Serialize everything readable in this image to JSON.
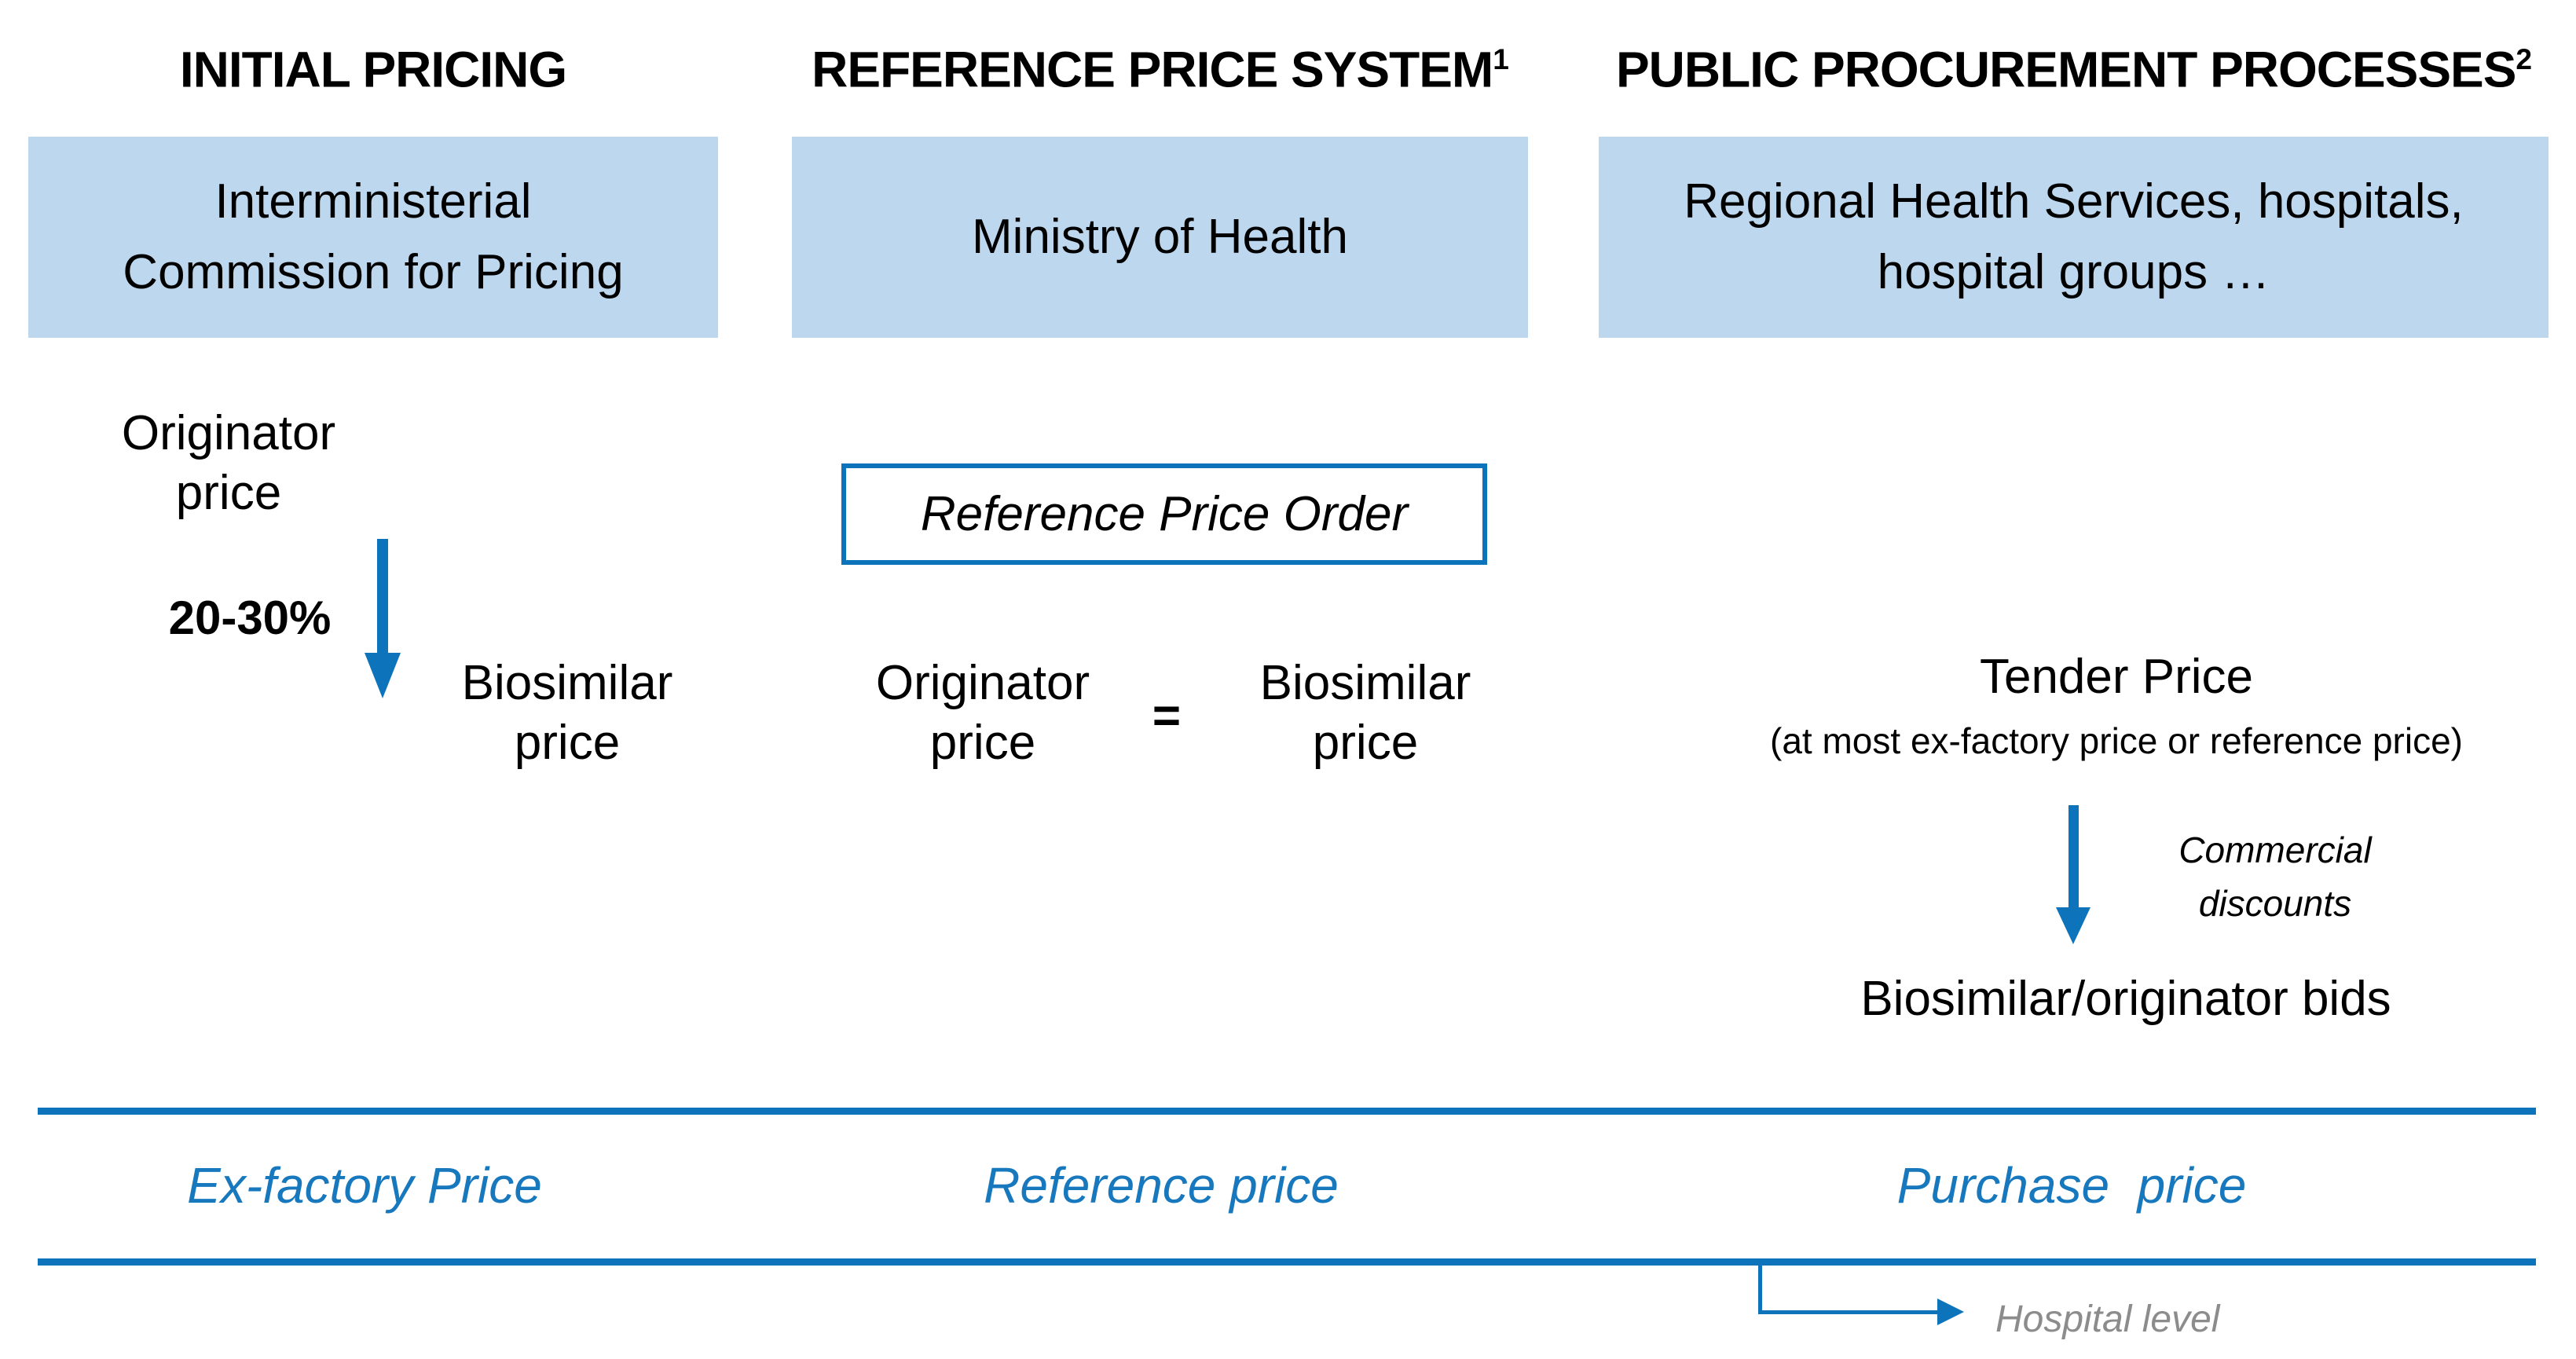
{
  "colors": {
    "accent_blue": "#0d74bb",
    "text_blue": "#1878be",
    "box_fill": "#bdd7ee",
    "gray": "#8c8c8c"
  },
  "columns": [
    {
      "header": "INITIAL PRICING",
      "box_lines": [
        "Interministerial",
        "Commission for Pricing"
      ]
    },
    {
      "header": "REFERENCE PRICE SYSTEM",
      "header_sup": "1",
      "box_lines": [
        "Ministry of Health"
      ]
    },
    {
      "header": "PUBLIC PROCUREMENT PROCESSES",
      "header_sup": "2",
      "box_lines": [
        "Regional Health Services, hospitals,",
        "hospital groups …"
      ]
    }
  ],
  "initial_pricing": {
    "originator_lines": [
      "Originator",
      "price"
    ],
    "discount_label": "20-30%",
    "biosimilar_lines": [
      "Biosimilar",
      "price"
    ]
  },
  "reference_system": {
    "order_box_label": "Reference Price Order",
    "originator_lines": [
      "Originator",
      "price"
    ],
    "equals": "=",
    "biosimilar_lines": [
      "Biosimilar",
      "price"
    ]
  },
  "procurement": {
    "tender_title": "Tender Price",
    "tender_subtitle": "(at most ex-factory price or reference price)",
    "discount_lines": [
      "Commercial",
      "discounts"
    ],
    "bids_label": "Biosimilar/originator bids"
  },
  "price_band": {
    "labels": [
      "Ex-factory Price",
      "Reference price",
      "Purchase  price"
    ],
    "hospital_level": "Hospital level"
  }
}
